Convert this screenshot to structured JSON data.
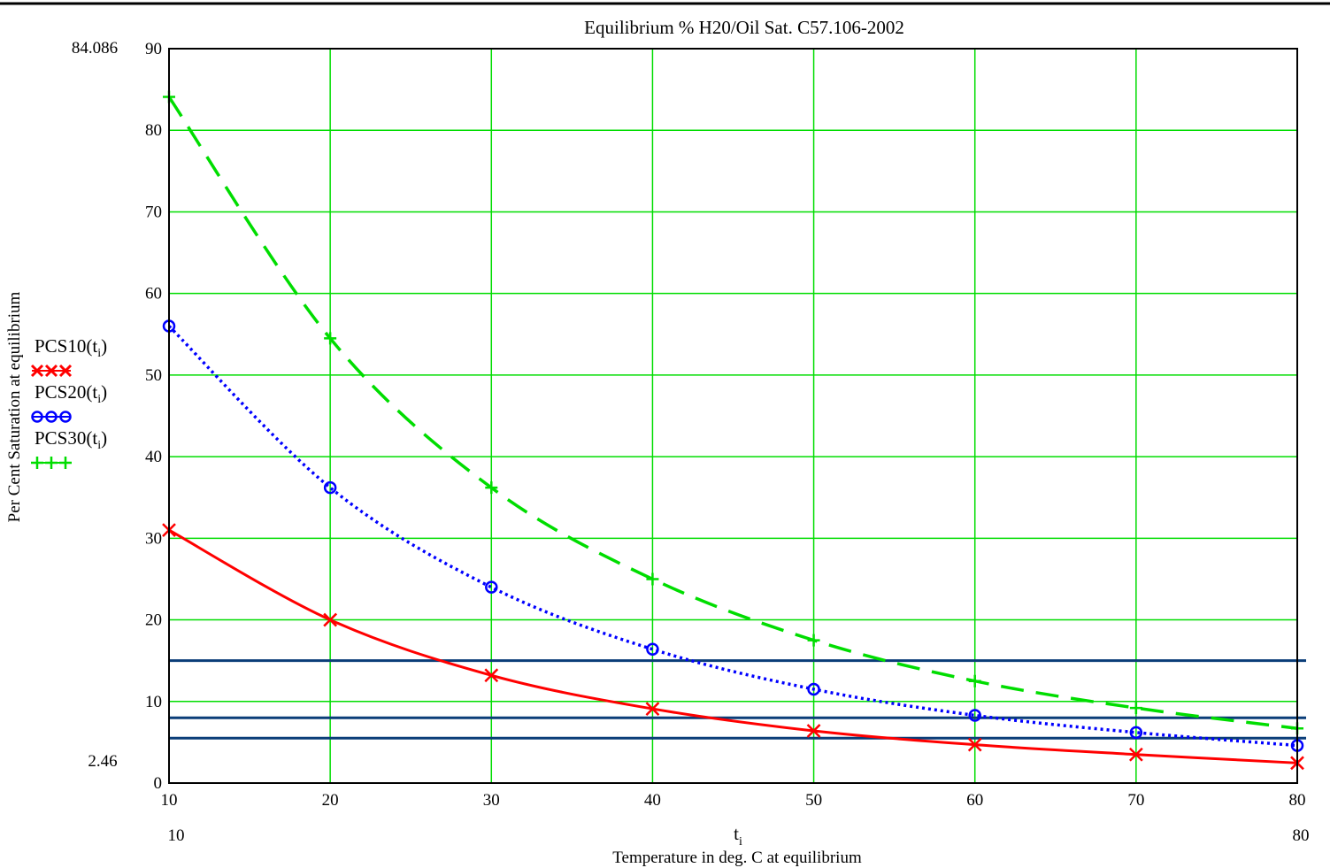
{
  "chart_data": {
    "type": "line",
    "title": "Equilibrium % H20/Oil Sat. C57.106-2002",
    "xlabel": "Temperature in deg. C at equilibrium",
    "xvar": "t",
    "xvar_sub": "i",
    "ylabel": "Per Cent Saturation at equilibrium",
    "xlim": [
      10,
      80
    ],
    "ylim": [
      0,
      90
    ],
    "xticks": [
      10,
      20,
      30,
      40,
      50,
      60,
      70,
      80
    ],
    "yticks": [
      0,
      10,
      20,
      30,
      40,
      50,
      60,
      70,
      80,
      90
    ],
    "x_range_labels": {
      "min": "10",
      "max": "80"
    },
    "y_range_labels": {
      "max": "84.086",
      "min": "2.46"
    },
    "grid": true,
    "grid_color": "#00dd00",
    "legend_position": "left",
    "x": [
      10,
      20,
      30,
      40,
      50,
      60,
      70,
      80
    ],
    "series": [
      {
        "name": "PCS10",
        "arg": "t",
        "arg_sub": "i",
        "color": "#ff0000",
        "line_style": "solid",
        "marker": "x",
        "legend_symbol": "✖✖✖",
        "values": [
          31,
          20,
          13.2,
          9.1,
          6.4,
          4.7,
          3.5,
          2.46
        ]
      },
      {
        "name": "PCS20",
        "arg": "t",
        "arg_sub": "i",
        "color": "#0000ff",
        "line_style": "dotted",
        "marker": "circle",
        "legend_symbol": "ooo",
        "values": [
          56,
          36.2,
          24,
          16.4,
          11.5,
          8.3,
          6.2,
          4.6
        ]
      },
      {
        "name": "PCS30",
        "arg": "t",
        "arg_sub": "i",
        "color": "#00dd00",
        "line_style": "dashed",
        "marker": "plus",
        "legend_symbol": "+++",
        "values": [
          84.086,
          54.5,
          36.2,
          25,
          17.5,
          12.5,
          9.2,
          6.7
        ]
      }
    ],
    "reference_lines": {
      "color": "#0a3d78",
      "y_values": [
        15,
        8,
        5.5
      ]
    }
  }
}
